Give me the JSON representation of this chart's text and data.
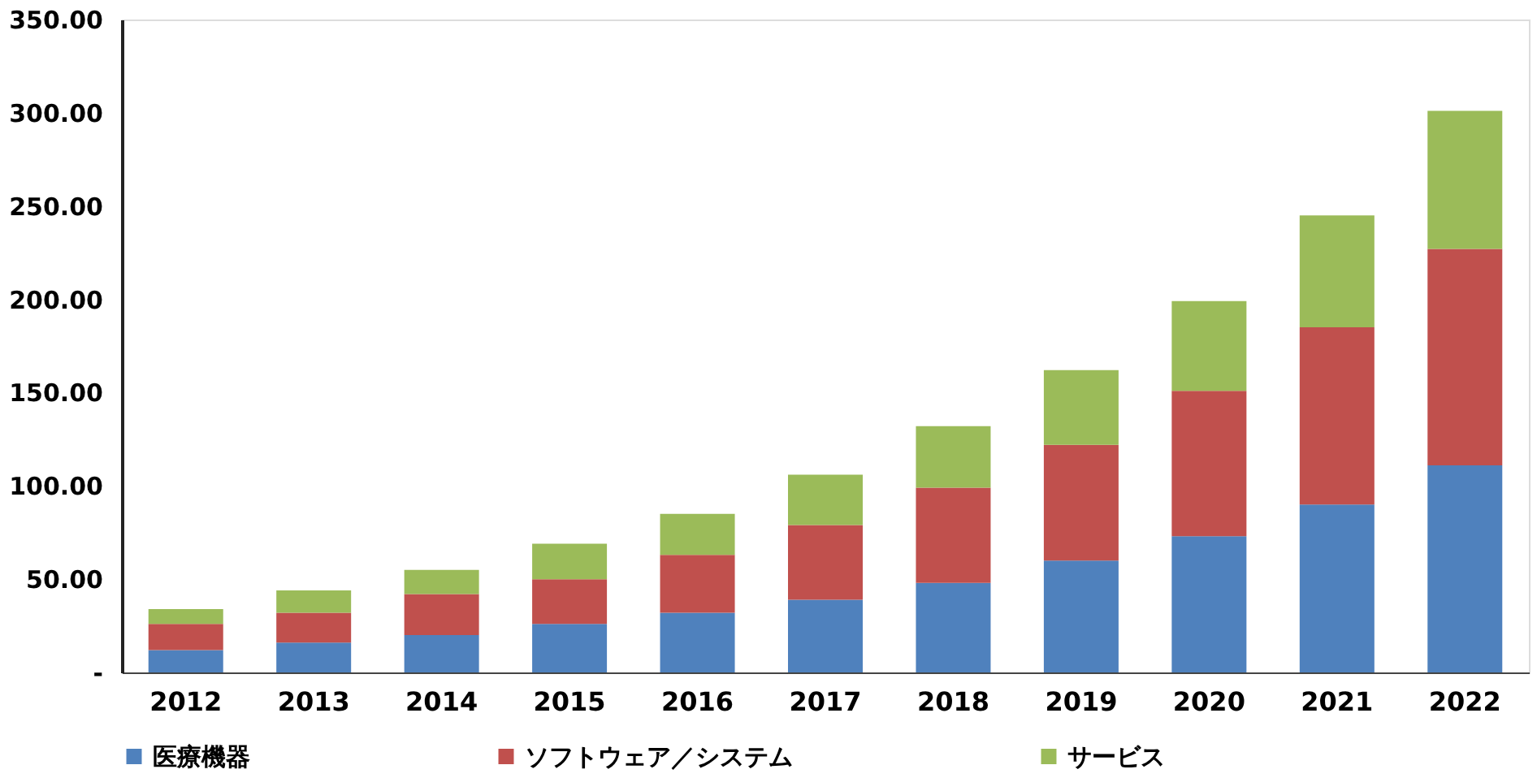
{
  "chart_data": {
    "type": "bar",
    "stacked": true,
    "categories": [
      "2012",
      "2013",
      "2014",
      "2015",
      "2016",
      "2017",
      "2018",
      "2019",
      "2020",
      "2021",
      "2022"
    ],
    "series": [
      {
        "name": "医療機器",
        "color": "#4f81bd",
        "values": [
          12,
          16,
          20,
          26,
          32,
          39,
          48,
          60,
          73,
          90,
          111
        ]
      },
      {
        "name": "ソフトウェア／システム",
        "color": "#c0504d",
        "values": [
          14,
          16,
          22,
          24,
          31,
          40,
          51,
          62,
          78,
          95,
          116
        ]
      },
      {
        "name": "サービス",
        "color": "#9bbb59",
        "values": [
          8,
          12,
          13,
          19,
          22,
          27,
          33,
          40,
          48,
          60,
          74
        ]
      }
    ],
    "ylim": [
      0,
      350
    ],
    "yticks": [
      {
        "value": 0,
        "label": "-"
      },
      {
        "value": 50,
        "label": "50.00"
      },
      {
        "value": 100,
        "label": "100.00"
      },
      {
        "value": 150,
        "label": "150.00"
      },
      {
        "value": 200,
        "label": "200.00"
      },
      {
        "value": 250,
        "label": "250.00"
      },
      {
        "value": 300,
        "label": "300.00"
      },
      {
        "value": 350,
        "label": "350.00"
      }
    ],
    "grid": false,
    "legend": "bottom"
  }
}
